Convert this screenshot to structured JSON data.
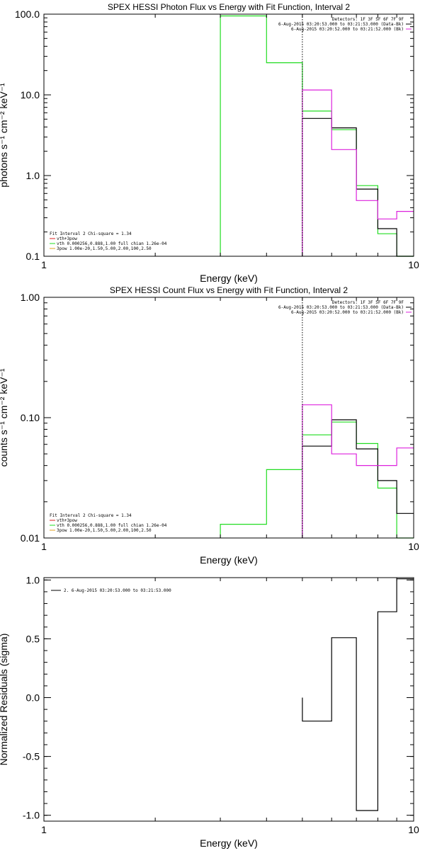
{
  "colors": {
    "background": "#ffffff",
    "axes": "#000000",
    "data": "#000000",
    "model": "#22dd22",
    "magenta": "#dd22dd",
    "red": "#dd2222",
    "orange": "#e0a020"
  },
  "chart_data": [
    {
      "type": "line",
      "id": "photon",
      "title": "SPEX HESSI Photon Flux vs Energy with Fit Function, Interval 2",
      "xlabel": "Energy (keV)",
      "ylabel": "photons s⁻¹ cm⁻² keV⁻¹",
      "xscale": "log",
      "yscale": "log",
      "xlim": [
        1,
        10
      ],
      "ylim": [
        0.1,
        100
      ],
      "x_ticks": [
        {
          "v": 1,
          "label": "1"
        },
        {
          "v": 10,
          "label": "10"
        }
      ],
      "y_ticks": [
        {
          "v": 0.1,
          "label": "0.1"
        },
        {
          "v": 1,
          "label": "1.0"
        },
        {
          "v": 10,
          "label": "10.0"
        },
        {
          "v": 100,
          "label": "100.0"
        }
      ],
      "bin_edges": [
        3,
        4,
        5,
        6,
        7,
        8,
        9,
        10
      ],
      "vline_x": 5,
      "series": [
        {
          "color": "#22dd22",
          "style": "histogram",
          "values": [
            95,
            25,
            6.3,
            3.7,
            0.75,
            0.19,
            0.1
          ]
        },
        {
          "color": "#000000",
          "style": "histogram",
          "values": [
            null,
            null,
            5.1,
            3.9,
            0.68,
            0.22,
            0.1
          ]
        },
        {
          "color": "#dd22dd",
          "style": "histogram",
          "values": [
            null,
            null,
            11.5,
            2.1,
            0.49,
            0.29,
            0.36
          ]
        }
      ],
      "legend_right": {
        "lines": [
          {
            "text": "Detectors: 1F 3F 5F 6F 7F 9F",
            "color": null
          },
          {
            "text": "6-Aug-2015 03:20:53.000 to 03:21:53.000 (Data-Bk)",
            "color": "#000000"
          },
          {
            "text": "6-Aug-2015 03:20:52.000 to 03:21:52.000 (Bk)",
            "color": "#dd22dd"
          }
        ]
      },
      "legend_left": {
        "header": "Fit Interval  2    Chi-square = 1.34",
        "lines": [
          {
            "text": "vth+3pow",
            "color": "#dd2222"
          },
          {
            "text": "vth 0.000256,0.888,1.00  full chian 1.26e-04",
            "color": "#22dd22"
          },
          {
            "text": "3pow 1.00e-20,1.50,5.00,2.00,100,2.50",
            "color": "#e0a020"
          }
        ]
      }
    },
    {
      "type": "line",
      "id": "count",
      "title": "SPEX HESSI Count Flux vs Energy with Fit Function, Interval 2",
      "xlabel": "Energy (keV)",
      "ylabel": "counts s⁻¹ cm⁻² keV⁻¹",
      "xscale": "log",
      "yscale": "log",
      "xlim": [
        1,
        10
      ],
      "ylim": [
        0.01,
        1
      ],
      "x_ticks": [
        {
          "v": 1,
          "label": "1"
        },
        {
          "v": 10,
          "label": "10"
        }
      ],
      "y_ticks": [
        {
          "v": 0.01,
          "label": "0.01"
        },
        {
          "v": 0.1,
          "label": "0.10"
        },
        {
          "v": 1,
          "label": "1.00"
        }
      ],
      "bin_edges": [
        3,
        4,
        5,
        6,
        7,
        8,
        9,
        10
      ],
      "vline_x": 5,
      "series": [
        {
          "color": "#22dd22",
          "style": "histogram",
          "values": [
            0.013,
            0.037,
            0.072,
            0.092,
            0.061,
            0.026,
            0.01
          ]
        },
        {
          "color": "#000000",
          "style": "histogram",
          "values": [
            null,
            null,
            0.058,
            0.096,
            0.055,
            0.03,
            0.016
          ]
        },
        {
          "color": "#dd22dd",
          "style": "histogram",
          "values": [
            null,
            null,
            0.128,
            0.05,
            0.04,
            0.04,
            0.056
          ]
        }
      ],
      "legend_right": {
        "lines": [
          {
            "text": "Detectors: 1F 3F 5F 6F 7F 9F",
            "color": null
          },
          {
            "text": "6-Aug-2015 03:20:53.000 to 03:21:53.000 (Data-Bk)",
            "color": "#000000"
          },
          {
            "text": "6-Aug-2015 03:20:52.000 to 03:21:52.000 (Bk)",
            "color": "#dd22dd"
          }
        ]
      },
      "legend_left": {
        "header": "Fit Interval  2    Chi-square = 1.34",
        "lines": [
          {
            "text": "vth+3pow",
            "color": "#dd2222"
          },
          {
            "text": "vth 0.000256,0.888,1.00  full chian 1.26e-04",
            "color": "#22dd22"
          },
          {
            "text": "3pow 1.00e-20,1.50,5.00,2.00,100,2.50",
            "color": "#e0a020"
          }
        ]
      }
    },
    {
      "type": "line",
      "id": "residuals",
      "title": "",
      "xlabel": "Energy (keV)",
      "ylabel": "Normalized Residuals (sigma)",
      "xscale": "log",
      "yscale": "linear",
      "xlim": [
        1,
        10
      ],
      "ylim": [
        -1.05,
        1.02
      ],
      "x_ticks": [
        {
          "v": 1,
          "label": "1"
        },
        {
          "v": 10,
          "label": "10"
        }
      ],
      "y_ticks": [
        {
          "v": -1,
          "label": "-1.0"
        },
        {
          "v": -0.5,
          "label": "-0.5"
        },
        {
          "v": 0,
          "label": "0.0"
        },
        {
          "v": 0.5,
          "label": "0.5"
        },
        {
          "v": 1,
          "label": "1.0"
        }
      ],
      "bin_edges": [
        5,
        6,
        7,
        8,
        9,
        10
      ],
      "vline_x": null,
      "series": [
        {
          "color": "#000000",
          "style": "histogram",
          "values": [
            -0.2,
            0.51,
            -0.96,
            0.73,
            1.01
          ]
        }
      ],
      "legend_right": null,
      "legend_top": {
        "text": "2.  6-Aug-2015 03:20:53.000 to 03:21:53.000",
        "color": "#000000"
      }
    }
  ]
}
